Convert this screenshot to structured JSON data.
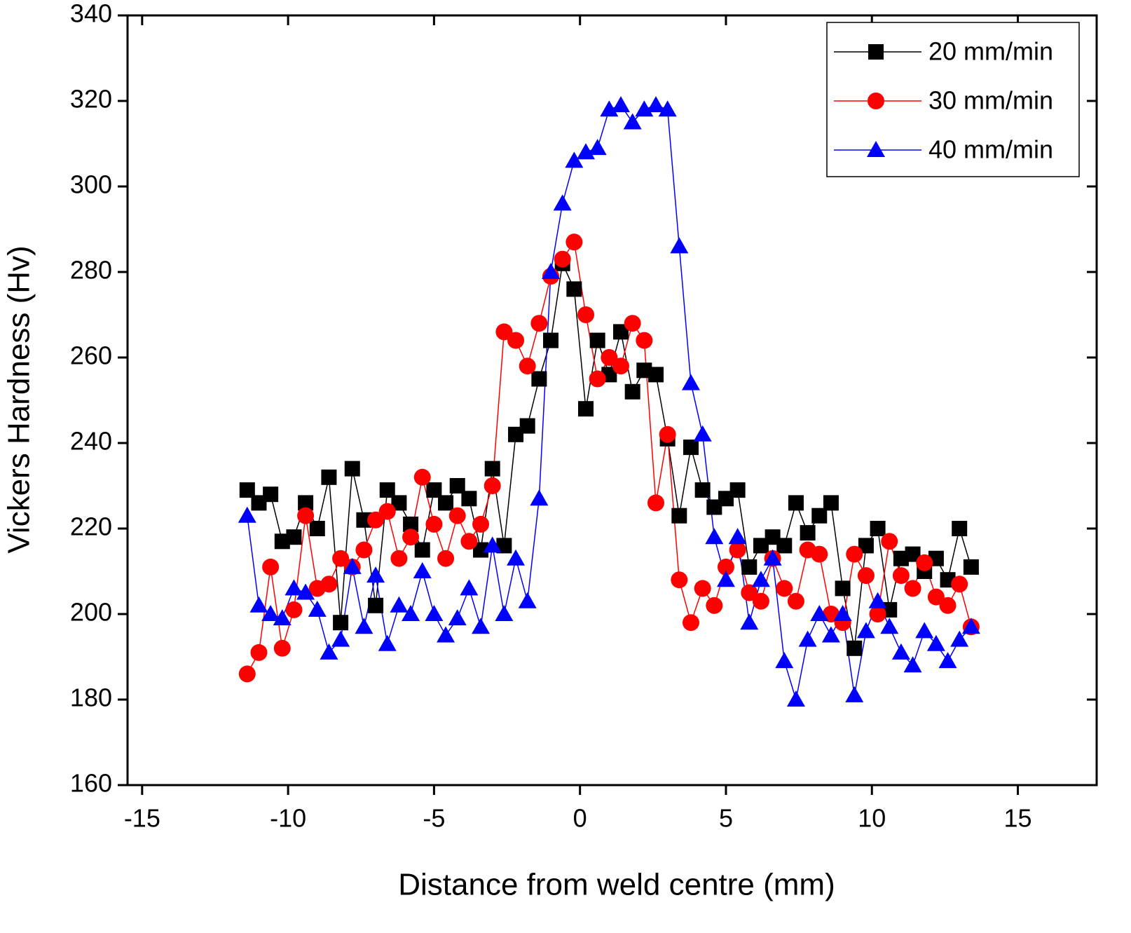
{
  "chart_data": {
    "type": "line",
    "xlabel": "Distance from weld centre (mm)",
    "ylabel": "Vickers Hardness (Hv)",
    "xlim": [
      -15.5,
      17.7
    ],
    "ylim": [
      160,
      340
    ],
    "xticks": [
      -15,
      -10,
      -5,
      0,
      5,
      10,
      15
    ],
    "yticks": [
      160,
      180,
      200,
      220,
      240,
      260,
      280,
      300,
      320,
      340
    ],
    "legend": "upper right",
    "x": [
      -11.4,
      -11.0,
      -10.6,
      -10.2,
      -9.8,
      -9.4,
      -9.0,
      -8.6,
      -8.2,
      -7.8,
      -7.4,
      -7.0,
      -6.6,
      -6.2,
      -5.8,
      -5.4,
      -5.0,
      -4.6,
      -4.2,
      -3.8,
      -3.4,
      -3.0,
      -2.6,
      -2.2,
      -1.8,
      -1.4,
      -1.0,
      -0.6,
      -0.2,
      0.2,
      0.6,
      1.0,
      1.4,
      1.8,
      2.2,
      2.6,
      3.0,
      3.4,
      3.8,
      4.2,
      4.6,
      5.0,
      5.4,
      5.8,
      6.2,
      6.6,
      7.0,
      7.4,
      7.8,
      8.2,
      8.6,
      9.0,
      9.4,
      9.8,
      10.2,
      10.6,
      11.0,
      11.4,
      11.8,
      12.2,
      12.6,
      13.0,
      13.4
    ],
    "series": [
      {
        "name": "20 mm/min",
        "color": "#000000",
        "marker": "square",
        "values": [
          229,
          226,
          228,
          217,
          218,
          226,
          220,
          232,
          198,
          234,
          222,
          202,
          229,
          226,
          221,
          215,
          229,
          226,
          230,
          227,
          215,
          234,
          216,
          242,
          244,
          255,
          264,
          282,
          276,
          248,
          264,
          256,
          266,
          252,
          257,
          256,
          241,
          223,
          239,
          229,
          225,
          227,
          229,
          211,
          216,
          218,
          216,
          226,
          219,
          223,
          226,
          206,
          192,
          216,
          220,
          201,
          213,
          214,
          210,
          213,
          208,
          220,
          211
        ]
      },
      {
        "name": "30 mm/min",
        "color": "#ff0000",
        "marker": "circle",
        "values": [
          186,
          191,
          211,
          192,
          201,
          223,
          206,
          207,
          213,
          211,
          215,
          222,
          224,
          213,
          218,
          232,
          221,
          213,
          223,
          217,
          221,
          230,
          266,
          264,
          258,
          268,
          279,
          283,
          287,
          270,
          255,
          260,
          258,
          268,
          264,
          226,
          242,
          208,
          198,
          206,
          202,
          211,
          215,
          205,
          203,
          213,
          206,
          203,
          215,
          214,
          200,
          198,
          214,
          209,
          200,
          217,
          209,
          206,
          212,
          204,
          202,
          207,
          197
        ]
      },
      {
        "name": "40 mm/min",
        "color": "#0000ff",
        "marker": "triangle",
        "values": [
          223,
          202,
          200,
          199,
          206,
          205,
          201,
          191,
          194,
          211,
          197,
          209,
          193,
          202,
          200,
          210,
          200,
          195,
          199,
          206,
          197,
          216,
          200,
          213,
          203,
          227,
          280,
          296,
          306,
          308,
          309,
          318,
          319,
          315,
          318,
          319,
          318,
          286,
          254,
          242,
          218,
          208,
          218,
          198,
          208,
          213,
          189,
          180,
          194,
          200,
          195,
          200,
          181,
          196,
          203,
          197,
          191,
          188,
          196,
          193,
          189,
          194,
          197
        ]
      }
    ]
  }
}
